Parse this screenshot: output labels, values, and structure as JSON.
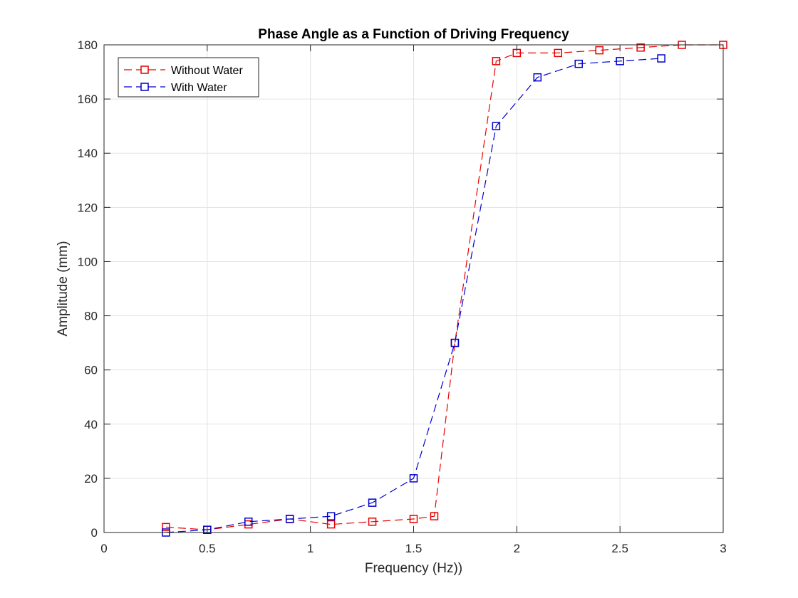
{
  "chart_data": {
    "type": "line",
    "title": "Phase Angle as a Function of Driving Frequency",
    "xlabel": "Frequency (Hz))",
    "ylabel": "Amplitude (mm)",
    "xlim": [
      0,
      3
    ],
    "ylim": [
      0,
      180
    ],
    "xticks": [
      0,
      0.5,
      1,
      1.5,
      2,
      2.5,
      3
    ],
    "xtick_labels": [
      "0",
      "0.5",
      "1",
      "1.5",
      "2",
      "2.5",
      "3"
    ],
    "yticks": [
      0,
      20,
      40,
      60,
      80,
      100,
      120,
      140,
      160,
      180
    ],
    "ytick_labels": [
      "0",
      "20",
      "40",
      "60",
      "80",
      "100",
      "120",
      "140",
      "160",
      "180"
    ],
    "grid": true,
    "legend_position": "top-left",
    "series": [
      {
        "name": "Without Water",
        "color": "#e60000",
        "line_style": "dashed",
        "marker": "square",
        "x": [
          0.3,
          0.5,
          0.7,
          0.9,
          1.1,
          1.3,
          1.5,
          1.6,
          1.7,
          1.9,
          2.0,
          2.2,
          2.4,
          2.6,
          2.8,
          3.0
        ],
        "y": [
          2,
          1,
          3,
          5,
          3,
          4,
          5,
          6,
          70,
          174,
          177,
          177,
          178,
          179,
          180,
          180
        ]
      },
      {
        "name": "With Water",
        "color": "#0000cc",
        "line_style": "dashed",
        "marker": "square",
        "x": [
          0.3,
          0.5,
          0.7,
          0.9,
          1.1,
          1.3,
          1.5,
          1.7,
          1.9,
          2.1,
          2.3,
          2.5,
          2.7
        ],
        "y": [
          0,
          1,
          4,
          5,
          6,
          11,
          20,
          70,
          150,
          168,
          173,
          174,
          175
        ]
      }
    ]
  }
}
